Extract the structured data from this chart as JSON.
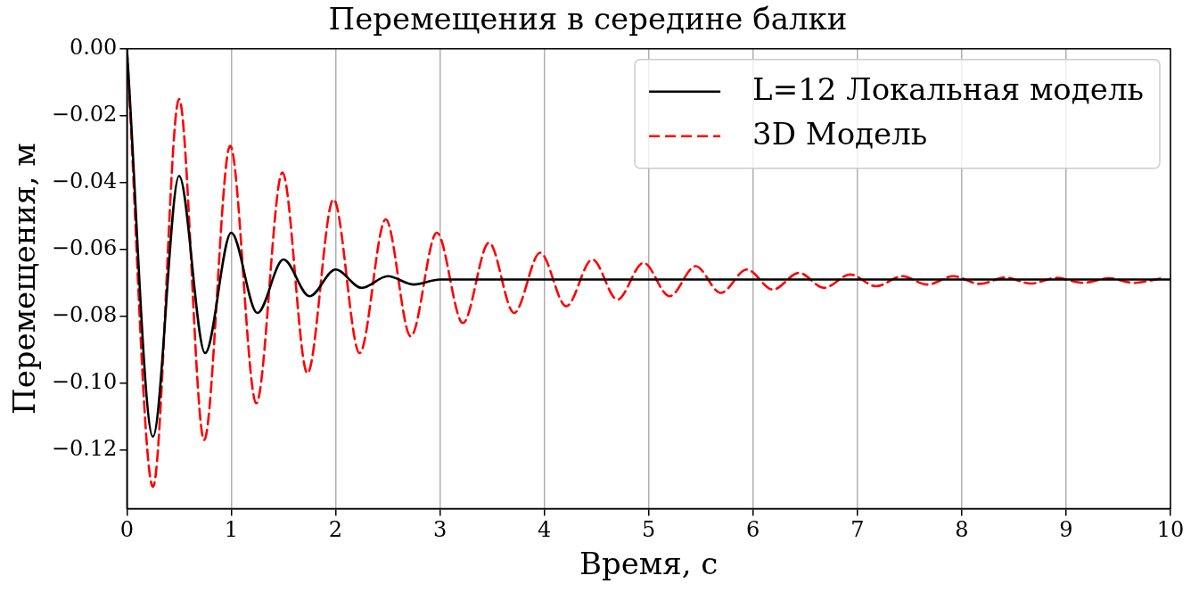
{
  "chart_data": {
    "type": "line",
    "title": "Перемещения в середине балки",
    "xlabel": "Время, с",
    "ylabel": "Перемещения, м",
    "xlim": [
      0,
      10
    ],
    "xticks": [
      0,
      1,
      2,
      3,
      4,
      5,
      6,
      7,
      8,
      9,
      10
    ],
    "ylim": [
      -0.1375,
      0
    ],
    "yticks": [
      {
        "value": -0.12,
        "label": "−0.12"
      },
      {
        "value": -0.1,
        "label": "−0.10"
      },
      {
        "value": -0.08,
        "label": "−0.08"
      },
      {
        "value": -0.06,
        "label": "−0.06"
      },
      {
        "value": -0.04,
        "label": "−0.04"
      },
      {
        "value": -0.02,
        "label": "−0.02"
      },
      {
        "value": 0,
        "label": "0.00"
      }
    ],
    "grid": "x",
    "legend": "top right",
    "marker": "none",
    "series": [
      {
        "name": "L=12 Локальная модель",
        "color": "#000000",
        "line_style": "solid",
        "x": [
          0,
          0.25,
          0.5,
          0.75,
          1,
          1.25,
          1.5,
          1.75,
          2,
          2.25,
          2.5,
          2.75,
          3,
          3.5,
          10
        ],
        "values": [
          0,
          -0.116,
          -0.038,
          -0.091,
          -0.055,
          -0.079,
          -0.063,
          -0.074,
          -0.066,
          -0.0715,
          -0.068,
          -0.0705,
          -0.069,
          -0.069,
          -0.069
        ]
      },
      {
        "name": "3D Модель",
        "color": "#ff0000",
        "line_style": "dashed",
        "x": [
          0,
          0.25,
          0.5,
          0.74,
          0.99,
          1.24,
          1.49,
          1.73,
          1.98,
          2.23,
          2.48,
          2.72,
          2.97,
          3.22,
          3.47,
          3.71,
          3.96,
          4.21,
          4.46,
          4.7,
          4.95,
          5.2,
          5.45,
          5.69,
          5.94,
          6.19,
          6.44,
          6.68,
          6.93,
          7.18,
          7.43,
          7.67,
          7.92,
          8.17,
          8.42,
          8.66,
          8.91,
          9.16,
          9.41,
          9.65,
          9.9
        ],
        "values": [
          0,
          -0.131,
          -0.015,
          -0.117,
          -0.029,
          -0.106,
          -0.037,
          -0.097,
          -0.045,
          -0.091,
          -0.051,
          -0.086,
          -0.055,
          -0.082,
          -0.058,
          -0.079,
          -0.061,
          -0.077,
          -0.063,
          -0.075,
          -0.064,
          -0.074,
          -0.065,
          -0.073,
          -0.066,
          -0.072,
          -0.067,
          -0.0715,
          -0.0675,
          -0.071,
          -0.068,
          -0.0705,
          -0.068,
          -0.0703,
          -0.0684,
          -0.0702,
          -0.0685,
          -0.07,
          -0.0686,
          -0.07,
          -0.0687
        ]
      }
    ]
  }
}
